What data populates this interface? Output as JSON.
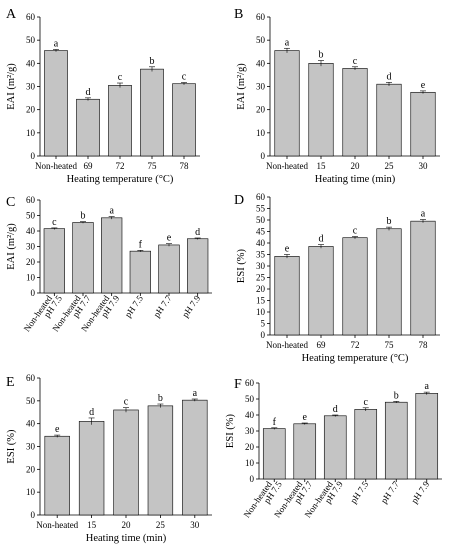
{
  "chart_data": [
    {
      "panel": "A",
      "type": "bar",
      "categories": [
        "Non-heated",
        "69",
        "72",
        "75",
        "78"
      ],
      "values": [
        45.5,
        24.5,
        30.5,
        37.5,
        31.2
      ],
      "errors": [
        0.5,
        0.6,
        1.0,
        1.0,
        0.5
      ],
      "letters": [
        "a",
        "d",
        "c",
        "b",
        "c"
      ],
      "xlabel": "Heating temperature (°C)",
      "ylabel": "EAI (m²/g)",
      "ylim": [
        0,
        60
      ],
      "yticks": [
        0,
        10,
        20,
        30,
        40,
        50,
        60
      ]
    },
    {
      "panel": "B",
      "type": "bar",
      "categories": [
        "Non-heated",
        "15",
        "20",
        "25",
        "30"
      ],
      "values": [
        45.5,
        40.0,
        37.8,
        31.0,
        27.5
      ],
      "errors": [
        1.0,
        1.2,
        0.7,
        0.8,
        0.6
      ],
      "letters": [
        "a",
        "b",
        "c",
        "d",
        "e"
      ],
      "xlabel": "Heating time (min)",
      "ylabel": "EAI (m²/g)",
      "ylim": [
        0,
        60
      ],
      "yticks": [
        0,
        10,
        20,
        30,
        40,
        50,
        60
      ]
    },
    {
      "panel": "C",
      "type": "bar",
      "categories": [
        "Non-heated pH 7.5",
        "Non-heated pH 7.7",
        "Non-heated pH 7.9",
        "pH 7.5",
        "pH 7.7",
        "pH 7.9"
      ],
      "tick_lines": [
        [
          "Non-heated",
          "pH 7.5"
        ],
        [
          "Non-heated",
          "pH 7.7"
        ],
        [
          "Non-heated",
          "pH 7.9"
        ],
        [
          "pH 7.5"
        ],
        [
          "pH 7.7"
        ],
        [
          "pH 7.9"
        ]
      ],
      "values": [
        41.5,
        45.5,
        48.5,
        27.0,
        31.0,
        35.0
      ],
      "errors": [
        0.5,
        0.5,
        0.8,
        0.5,
        0.8,
        0.5
      ],
      "letters": [
        "c",
        "b",
        "a",
        "f",
        "e",
        "d"
      ],
      "xlabel": "",
      "ylabel": "EAI (m²/g)",
      "ylim": [
        0,
        60
      ],
      "yticks": [
        0,
        10,
        20,
        30,
        40,
        50,
        60
      ],
      "rotated_ticks": true
    },
    {
      "panel": "D",
      "type": "bar",
      "categories": [
        "Non-heated",
        "69",
        "72",
        "75",
        "78"
      ],
      "values": [
        34.2,
        38.5,
        42.3,
        46.2,
        49.5
      ],
      "errors": [
        0.8,
        0.8,
        0.5,
        0.7,
        0.7
      ],
      "letters": [
        "e",
        "d",
        "c",
        "b",
        "a"
      ],
      "xlabel": "Heating temperature (°C)",
      "ylabel": "ESI (%)",
      "ylim": [
        0,
        60
      ],
      "yticks": [
        0,
        5,
        10,
        15,
        20,
        25,
        30,
        35,
        40,
        45,
        50,
        55,
        60
      ]
    },
    {
      "panel": "E",
      "type": "bar",
      "categories": [
        "Non-heated",
        "15",
        "20",
        "25",
        "30"
      ],
      "values": [
        34.5,
        41.0,
        46.0,
        47.8,
        50.3
      ],
      "errors": [
        0.5,
        1.5,
        1.0,
        0.8,
        0.5
      ],
      "letters": [
        "e",
        "d",
        "c",
        "b",
        "a"
      ],
      "xlabel": "Heating time (min)",
      "ylabel": "ESI (%)",
      "ylim": [
        0,
        60
      ],
      "yticks": [
        0,
        10,
        20,
        30,
        40,
        50,
        60
      ]
    },
    {
      "panel": "F",
      "type": "bar",
      "categories": [
        "Non-heated pH 7.5",
        "Non-heated pH 7.7",
        "Non-heated pH 7.9",
        "pH 7.5",
        "pH 7.7",
        "pH 7.9"
      ],
      "tick_lines": [
        [
          "Non-heated",
          "pH 7.5"
        ],
        [
          "Non-heated",
          "pH 7.7"
        ],
        [
          "Non-heated",
          "pH 7.9"
        ],
        [
          "pH 7.5"
        ],
        [
          "pH 7.7"
        ],
        [
          "pH 7.9"
        ]
      ],
      "values": [
        31.5,
        34.5,
        39.5,
        43.5,
        48.0,
        53.5
      ],
      "errors": [
        0.5,
        0.5,
        0.5,
        1.0,
        0.5,
        0.8
      ],
      "letters": [
        "f",
        "e",
        "d",
        "c",
        "b",
        "a"
      ],
      "xlabel": "",
      "ylabel": "ESI (%)",
      "ylim": [
        0,
        60
      ],
      "yticks": [
        0,
        10,
        20,
        30,
        40,
        50,
        60
      ],
      "rotated_ticks": true
    }
  ]
}
